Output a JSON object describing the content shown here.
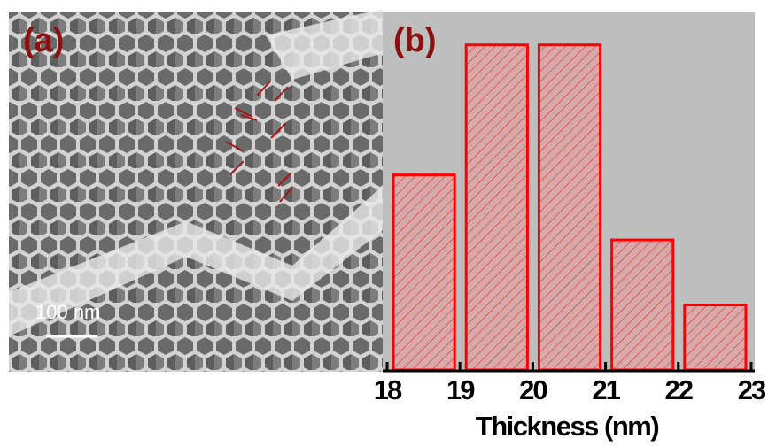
{
  "image": {
    "label": "(a)",
    "scale_bar": "100 nm"
  },
  "chart_data": {
    "type": "histogram",
    "title": "(b)",
    "xlabel": "Thickness (nm)",
    "bins": [
      18,
      19,
      20,
      21,
      22,
      23
    ],
    "values": [
      30,
      50,
      50,
      20,
      10
    ],
    "color": "#ff0000",
    "background": "#bebebe",
    "xlim": [
      18,
      23
    ],
    "xticks": [
      18,
      19,
      20,
      21,
      22,
      23
    ],
    "ylim": [
      0,
      55
    ]
  }
}
